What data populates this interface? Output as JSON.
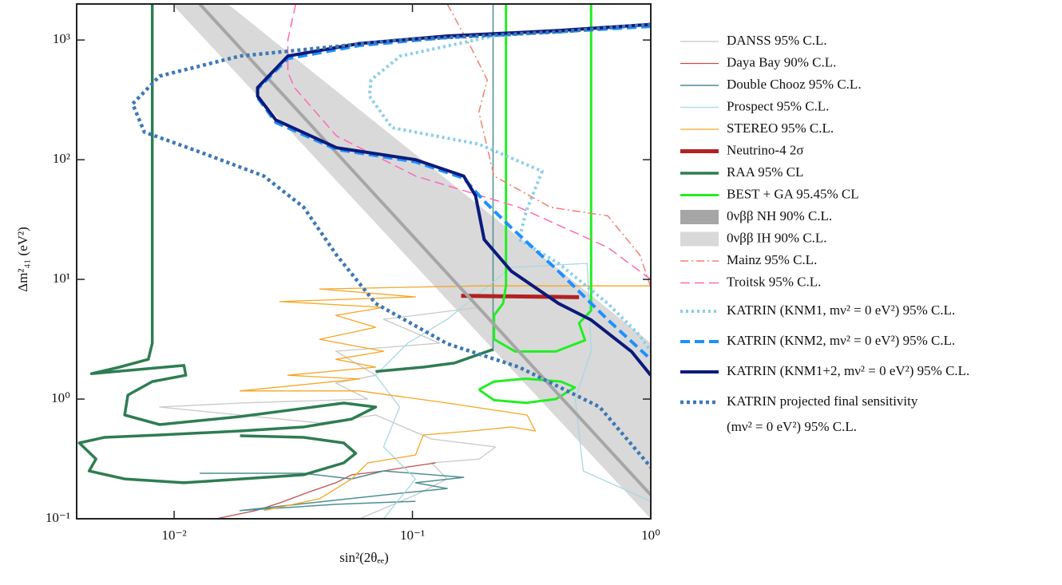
{
  "chart_data": {
    "type": "line",
    "x_label": "sin²(2θₑₑ)",
    "y_label": "Δm²₄₁ (eV²)",
    "x_log": true,
    "y_log": true,
    "xlim": [
      0.0039,
      1
    ],
    "ylim": [
      0.1,
      2000
    ],
    "xticks": [
      {
        "value": 0.01,
        "label": "10⁻²"
      },
      {
        "value": 0.1,
        "label": "10⁻¹"
      },
      {
        "value": 1,
        "label": "10⁰"
      }
    ],
    "yticks": [
      {
        "value": 0.1,
        "label": "10⁻¹"
      },
      {
        "value": 1,
        "label": "10⁰"
      },
      {
        "value": 10,
        "label": "10¹"
      },
      {
        "value": 100,
        "label": "10²"
      },
      {
        "value": 1000,
        "label": "10³"
      }
    ],
    "series": [
      {
        "name": "DANSS 95% C.L.",
        "color": "#c8c8c8",
        "width": 1.3,
        "x": [
          0.0601,
          0.103,
          0.14,
          0.12,
          0.191,
          0.223,
          0.12,
          0.0701,
          0.0408,
          0.0189,
          0.0087,
          0.0189,
          0.0649,
          0.0477,
          0.0701,
          0.0477,
          0.13,
          0.0757,
          0.191
        ],
        "values": [
          0.1,
          0.158,
          0.215,
          0.293,
          0.316,
          0.398,
          0.464,
          0.736,
          0.631,
          0.736,
          0.858,
          0.926,
          1,
          1.36,
          1.58,
          2.51,
          2.93,
          4.64,
          5.84
        ]
      },
      {
        "name": "Daya Bay 90% C.L.",
        "color": "#c0504d",
        "width": 1.3,
        "x": [
          0.015,
          0.022,
          0.0278,
          0.0379,
          0.0477,
          0.0556,
          0.0757,
          0.0955,
          0.125
        ],
        "values": [
          0.1,
          0.117,
          0.136,
          0.171,
          0.2,
          0.233,
          0.251,
          0.271,
          0.293
        ]
      },
      {
        "name": "Double Chooz 95% C.L.",
        "color": "#4e8f92",
        "width": 1.5,
        "x": [
          0.218,
          0.218,
          null,
          0.0128,
          0.035,
          0.0556,
          0.0757,
          0.164,
          0.103,
          0.14,
          0.0757,
          0.0189,
          0.0477,
          0.103
        ],
        "values": [
          2000,
          2.5,
          null,
          0.24,
          0.24,
          0.215,
          0.251,
          0.222,
          0.2,
          0.179,
          0.158,
          0.117,
          0.132,
          0.14
        ]
      },
      {
        "name": "Prospect 95% C.L.",
        "color": "#a8d8e0",
        "width": 1.3,
        "x": [
          1,
          0.521,
          0.482,
          0.562,
          0.541,
          0.26,
          0.14,
          0.0955,
          0.0701,
          0.0884,
          0.0757,
          0.103,
          0.0757
        ],
        "values": [
          0.14,
          0.251,
          1,
          2.51,
          13.6,
          12.6,
          4.64,
          2.93,
          1.58,
          0.858,
          0.398,
          0.215,
          0.1
        ]
      },
      {
        "name": "STEREO 95% C.L.",
        "color": "#f5a623",
        "width": 1.3,
        "x": [
          0.0238,
          0.0408,
          0.0556,
          0.0649,
          0.103,
          0.111,
          0.177,
          0.26,
          0.328,
          0.303,
          0.14,
          0.0601,
          0.0189,
          0.0601,
          0.03,
          0.0701,
          0.0477,
          0.0757,
          0.0408,
          0.0701,
          0.0477,
          0.0757,
          0.0278,
          0.103,
          0.0408,
          0.191,
          1
        ],
        "values": [
          0.117,
          0.147,
          0.215,
          0.293,
          0.341,
          0.501,
          0.541,
          0.585,
          0.541,
          0.736,
          0.926,
          1.17,
          1.17,
          1.47,
          1.58,
          1.85,
          2.15,
          2.51,
          3.16,
          3.98,
          5.01,
          5.84,
          6.52,
          7.14,
          8.32,
          8.83,
          8.83
        ]
      },
      {
        "name": "Neutrino-4 2σ",
        "color": "#b22222",
        "width": 5,
        "x": [
          0.16,
          0.5
        ],
        "values": [
          7.3,
          7.1
        ]
      },
      {
        "name": "RAA 95% CL",
        "color": "#2e7d52",
        "width": 3.5,
        "x": [
          0.0081,
          0.0081,
          0.0078,
          0.0059,
          0.0045,
          0.011,
          0.0112,
          0.0081,
          0.0064,
          0.0062,
          0.0087,
          0.0189,
          0.0515,
          0.0701,
          0.0556,
          0.035,
          0.0189,
          0.0087,
          0.0051,
          0.004,
          0.0047,
          0.0044,
          0.0062,
          0.011,
          0.035,
          0.0515,
          0.0578,
          0.0515,
          0.035,
          0.0189,
          null,
          0.218,
          0.15,
          0.111,
          0.07
        ],
        "values": [
          2000,
          2.93,
          2.15,
          1.85,
          1.63,
          1.91,
          1.58,
          1.4,
          1.08,
          0.736,
          0.612,
          0.714,
          0.926,
          0.858,
          0.681,
          0.585,
          0.541,
          0.501,
          0.479,
          0.43,
          0.316,
          0.251,
          0.215,
          0.2,
          0.233,
          0.293,
          0.352,
          0.43,
          0.479,
          0.494,
          null,
          2.6,
          2.0,
          1.85,
          1.7
        ]
      },
      {
        "name": "BEST + GA 95.45% CL",
        "color": "#22ee22",
        "width": 3,
        "x": [
          0.247,
          0.247,
          0.24,
          0.22,
          0.22,
          0.27,
          0.4,
          0.53,
          0.5,
          0.562,
          0.562,
          null,
          0.19,
          0.22,
          0.3,
          0.42,
          0.48,
          0.4,
          0.3,
          0.22,
          0.19
        ],
        "values": [
          2000,
          8.9,
          6.3,
          5.0,
          3.16,
          2.5,
          2.5,
          3.1,
          4.3,
          5.5,
          2000,
          null,
          1.2,
          1.4,
          1.48,
          1.4,
          1.25,
          1.0,
          0.93,
          0.98,
          1.2
        ]
      },
      {
        "name": "0νββ NH 90% C.L.",
        "color": "#a6a6a6",
        "width": 4,
        "x": [
          0.0128,
          1
        ],
        "values": [
          2000,
          0.158
        ]
      },
      {
        "name": "0νββ IH 90% C.L.",
        "color": "#d9d9d9",
        "fill": true,
        "x": [
          0.0098,
          0.0168,
          1,
          1
        ],
        "values": [
          2000,
          2000,
          2.93,
          0.1
        ]
      },
      {
        "name": "Mainz 95% C.L.",
        "color": "#f08070",
        "width": 1.5,
        "dash": "10 4 2 4",
        "x": [
          0.14,
          0.177,
          0.206,
          0.19,
          0.22,
          0.38,
          0.66,
          0.9,
          1
        ],
        "values": [
          2000,
          850,
          464,
          250,
          73,
          40,
          34,
          16,
          8.6
        ]
      },
      {
        "name": "Troitsk 95% C.L.",
        "color": "#ff69b4",
        "width": 1.5,
        "dash": "12 6",
        "x": [
          0.0324,
          0.03,
          0.03,
          0.032,
          0.048,
          0.103,
          0.28,
          0.66,
          1
        ],
        "values": [
          2000,
          1000,
          540,
          400,
          158,
          73,
          40,
          18.5,
          10
        ]
      },
      {
        "name": "KATRIN (KNM1, mν² = 0 eV²) 95% C.L.",
        "color": "#87ceeb",
        "width": 4,
        "dash": "3 4",
        "x": [
          1,
          0.56,
          0.22,
          0.089,
          0.067,
          0.066,
          0.082,
          0.19,
          0.35,
          0.3,
          0.28,
          0.41,
          0.66,
          0.9,
          1
        ],
        "values": [
          1350,
          1250,
          1080,
          735,
          464,
          340,
          185,
          135,
          80,
          37,
          21.5,
          13.6,
          6.3,
          3.4,
          2.5
        ]
      },
      {
        "name": "KATRIN (KNM2, mν² = 0 eV²) 95% C.L.",
        "color": "#1e90ff",
        "width": 4,
        "dash": "12 6",
        "x": [
          1,
          0.41,
          0.14,
          0.06,
          0.03,
          0.0224,
          0.0224,
          0.0267,
          0.048,
          0.103,
          0.164,
          0.2,
          0.26,
          0.41,
          0.66,
          1
        ],
        "values": [
          1300,
          1170,
          1050,
          900,
          700,
          390,
          330,
          205,
          122,
          96,
          70,
          45,
          27,
          11.7,
          4.6,
          2.15
        ]
      },
      {
        "name": "KATRIN (KNM1+2, mν² = 0 eV²) 95% C.L.",
        "color": "#0b1a7a",
        "width": 4,
        "x": [
          1,
          0.41,
          0.14,
          0.06,
          0.03,
          0.0224,
          0.0224,
          0.0267,
          0.048,
          0.103,
          0.164,
          0.184,
          0.2,
          0.26,
          0.41,
          0.56,
          0.83,
          1
        ],
        "values": [
          1350,
          1200,
          1080,
          935,
          735,
          400,
          340,
          215,
          126,
          100,
          73,
          50,
          21.5,
          11.7,
          6.3,
          4.6,
          2.5,
          1.58
        ]
      },
      {
        "name": [
          "KATRIN projected final sensitivity",
          "(mν² = 0 eV²) 95% C.L."
        ],
        "color": "#3d78b5",
        "width": 4.5,
        "dash": "4 4",
        "x": [
          1,
          0.41,
          0.089,
          0.0189,
          0.0087,
          0.0067,
          0.0075,
          0.0128,
          0.0238,
          0.035,
          0.048,
          0.07,
          0.14,
          0.28,
          0.61,
          1
        ],
        "values": [
          1350,
          1170,
          1000,
          735,
          500,
          293,
          170,
          116,
          73,
          40,
          16,
          6.3,
          2.9,
          1.85,
          0.86,
          0.27
        ]
      }
    ]
  }
}
